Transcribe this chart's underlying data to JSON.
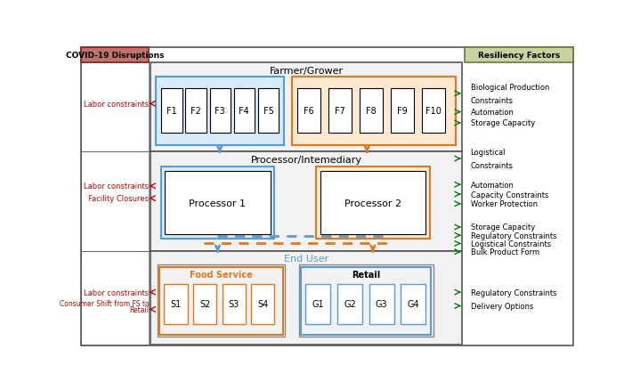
{
  "fig_width": 7.19,
  "fig_height": 4.39,
  "dpi": 100,
  "bg_color": "#ffffff",
  "covid_header": "COVID-19 Disruptions",
  "covid_header_bg": "#c0736a",
  "resiliency_header": "Resiliency Factors",
  "resiliency_header_bg": "#c8d4a0",
  "resiliency_header_border": "#6b7a3a",
  "farmer_label": "Farmer/Grower",
  "processor_label": "Processor/Intemediary",
  "enduser_label": "End User",
  "foodservice_label": "Food Service",
  "retail_label": "Retail",
  "f_blue_items": [
    "F1",
    "F2",
    "F3",
    "F4",
    "F5"
  ],
  "f_orange_items": [
    "F6",
    "F7",
    "F8",
    "F9",
    "F10"
  ],
  "processor1_label": "Processor 1",
  "processor2_label": "Processor 2",
  "s_items": [
    "S1",
    "S2",
    "S3",
    "S4"
  ],
  "g_items": [
    "G1",
    "G2",
    "G3",
    "G4"
  ],
  "blue_fill": "#d6eaf8",
  "orange_fill": "#fde8d0",
  "blue_border": "#5b9bd5",
  "orange_border": "#e07820",
  "section_fill": "#f2f2f2",
  "section_border": "#555555",
  "dashed_blue": "#5b9bd5",
  "dashed_orange": "#e07820",
  "red_arrow": "#cc0000",
  "green_arrow": "#008000",
  "enduser_label_color": "#5b9bd5"
}
